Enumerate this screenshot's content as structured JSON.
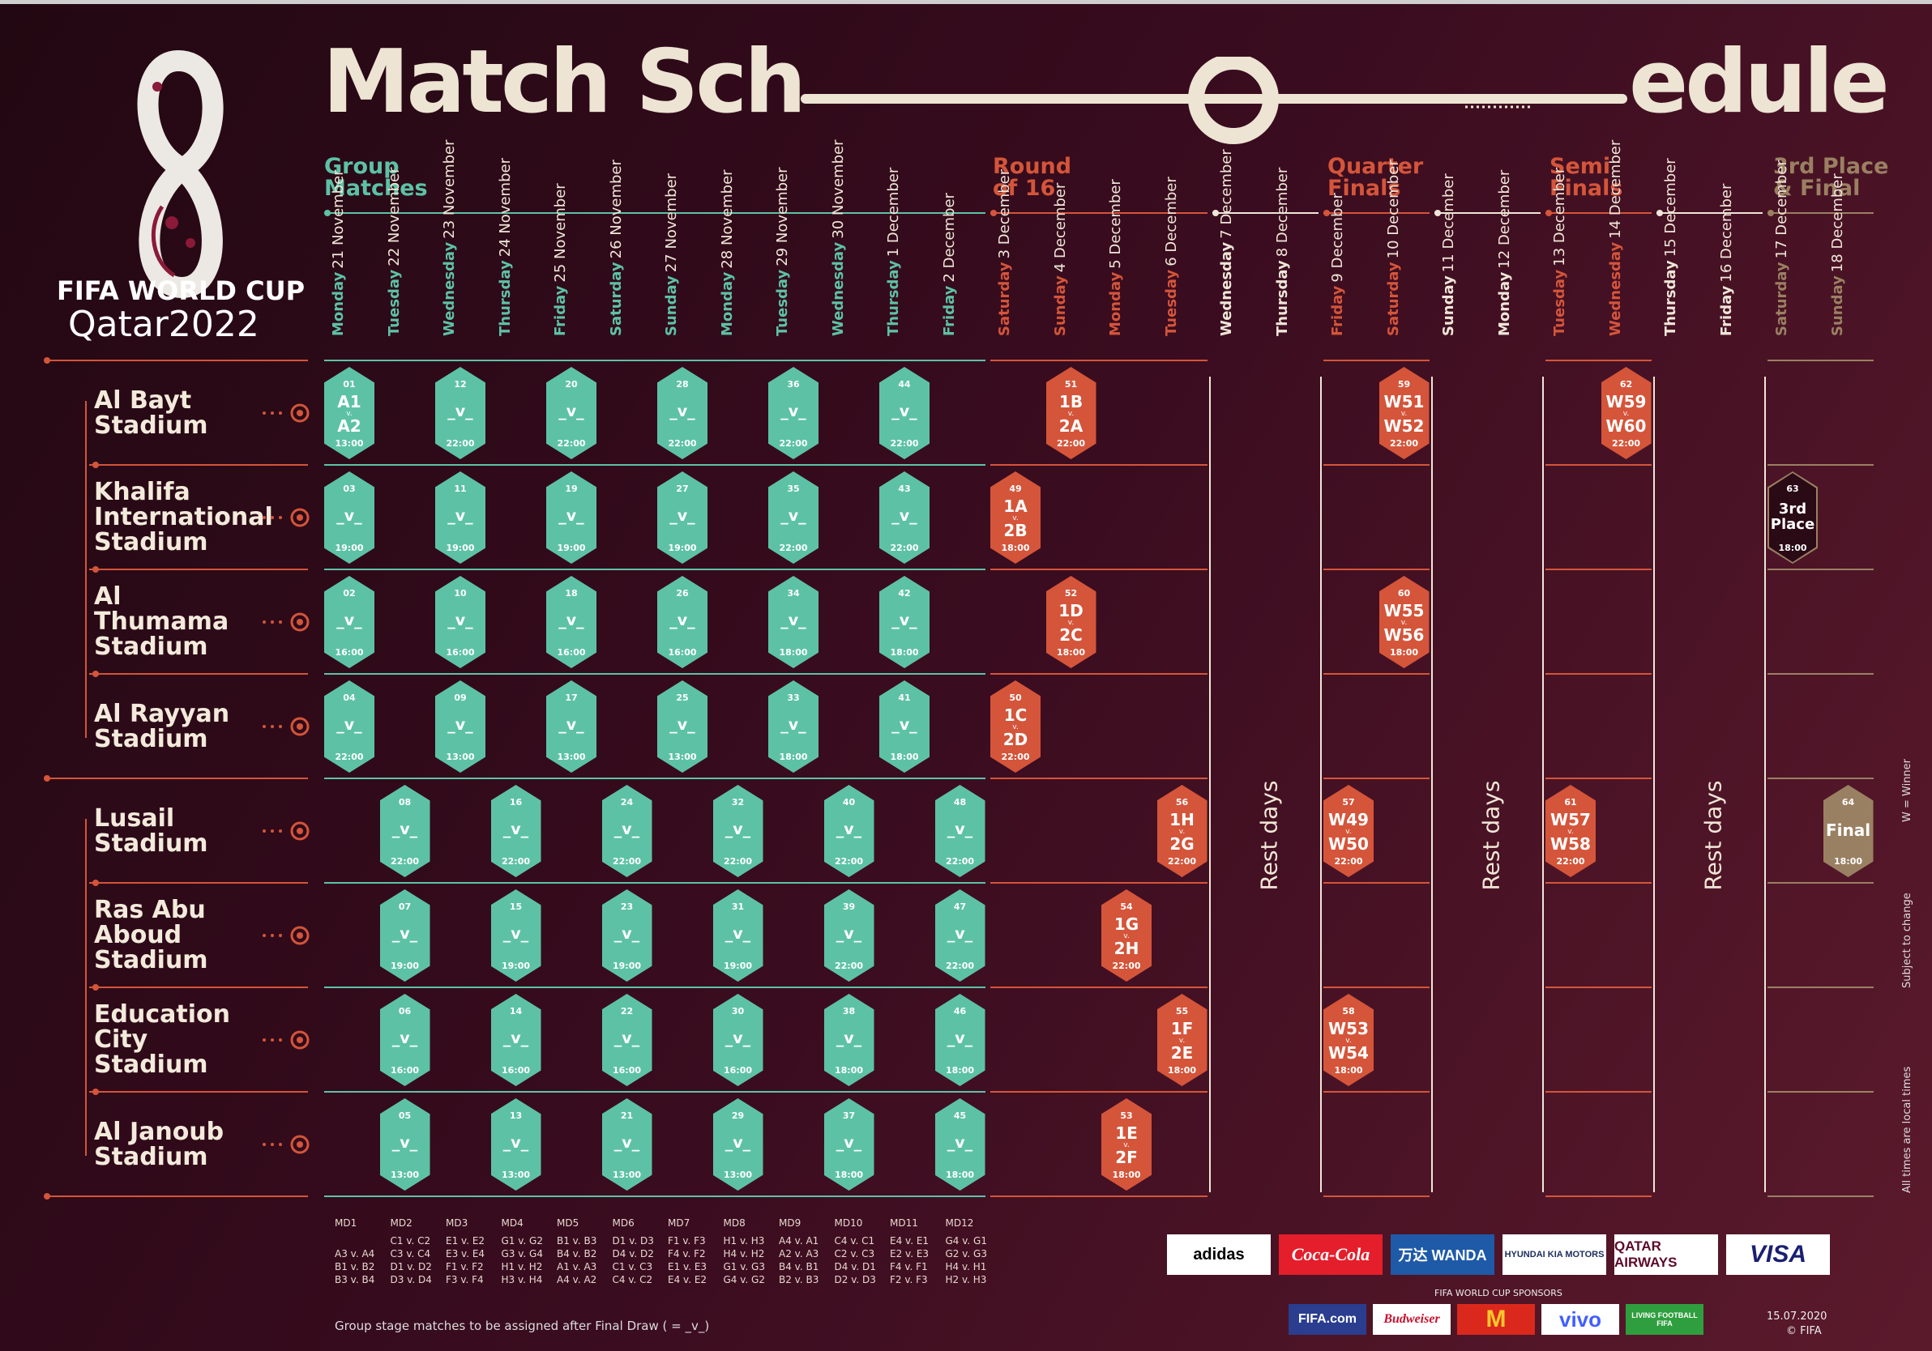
{
  "title": {
    "part1": "Match Sch",
    "part2": "edule"
  },
  "logo": {
    "line1": "FIFA WORLD CUP",
    "line2": "Qatar2022"
  },
  "phases": {
    "group": {
      "l1": "Group",
      "l2": "Matches"
    },
    "r16": {
      "l1": "Round",
      "l2": "of 16"
    },
    "qf": {
      "l1": "Quarter",
      "l2": "Finals"
    },
    "sf": {
      "l1": "Semi",
      "l2": "Finals"
    },
    "final": {
      "l1": "3rd Place",
      "l2": "& Final"
    }
  },
  "dates": [
    {
      "day": "Monday",
      "date": "21 November"
    },
    {
      "day": "Tuesday",
      "date": "22 November"
    },
    {
      "day": "Wednesday",
      "date": "23 November"
    },
    {
      "day": "Thursday",
      "date": "24 November"
    },
    {
      "day": "Friday",
      "date": "25 November"
    },
    {
      "day": "Saturday",
      "date": "26 November"
    },
    {
      "day": "Sunday",
      "date": "27 November"
    },
    {
      "day": "Monday",
      "date": "28 November"
    },
    {
      "day": "Tuesday",
      "date": "29 November"
    },
    {
      "day": "Wednesday",
      "date": "30 November"
    },
    {
      "day": "Thursday",
      "date": "1 December"
    },
    {
      "day": "Friday",
      "date": "2 December"
    },
    {
      "day": "Saturday",
      "date": "3 December"
    },
    {
      "day": "Sunday",
      "date": "4 December"
    },
    {
      "day": "Monday",
      "date": "5 December"
    },
    {
      "day": "Tuesday",
      "date": "6 December"
    },
    {
      "day": "Wednesday",
      "date": "7 December"
    },
    {
      "day": "Thursday",
      "date": "8 December"
    },
    {
      "day": "Friday",
      "date": "9 December"
    },
    {
      "day": "Saturday",
      "date": "10 December"
    },
    {
      "day": "Sunday",
      "date": "11 December"
    },
    {
      "day": "Monday",
      "date": "12 December"
    },
    {
      "day": "Tuesday",
      "date": "13 December"
    },
    {
      "day": "Wednesday",
      "date": "14 December"
    },
    {
      "day": "Thursday",
      "date": "15 December"
    },
    {
      "day": "Friday",
      "date": "16 December"
    },
    {
      "day": "Saturday",
      "date": "17 December"
    },
    {
      "day": "Sunday",
      "date": "18 December"
    }
  ],
  "stadiums": [
    "Al Bayt\nStadium",
    "Khalifa\nInternational\nStadium",
    "Al\nThumama\nStadium",
    "Al Rayyan\nStadium",
    "Lusail\nStadium",
    "Ras Abu\nAboud\nStadium",
    "Education\nCity\nStadium",
    "Al Janoub\nStadium"
  ],
  "rest_label": "Rest days",
  "vs": "_v_",
  "v_small": "v.",
  "matches": [
    {
      "s": 0,
      "c": 0,
      "n": "01",
      "a": "A1",
      "b": "A2",
      "t": "13:00",
      "k": "g"
    },
    {
      "s": 0,
      "c": 2,
      "n": "12",
      "t": "22:00",
      "k": "g"
    },
    {
      "s": 0,
      "c": 4,
      "n": "20",
      "t": "22:00",
      "k": "g"
    },
    {
      "s": 0,
      "c": 6,
      "n": "28",
      "t": "22:00",
      "k": "g"
    },
    {
      "s": 0,
      "c": 8,
      "n": "36",
      "t": "22:00",
      "k": "g"
    },
    {
      "s": 0,
      "c": 10,
      "n": "44",
      "t": "22:00",
      "k": "g"
    },
    {
      "s": 0,
      "c": 13,
      "n": "51",
      "a": "1B",
      "b": "2A",
      "t": "22:00",
      "k": "r"
    },
    {
      "s": 0,
      "c": 19,
      "n": "59",
      "a": "W51",
      "b": "W52",
      "t": "22:00",
      "k": "r"
    },
    {
      "s": 0,
      "c": 23,
      "n": "62",
      "a": "W59",
      "b": "W60",
      "t": "22:00",
      "k": "r"
    },
    {
      "s": 1,
      "c": 0,
      "n": "03",
      "t": "19:00",
      "k": "g"
    },
    {
      "s": 1,
      "c": 2,
      "n": "11",
      "t": "19:00",
      "k": "g"
    },
    {
      "s": 1,
      "c": 4,
      "n": "19",
      "t": "19:00",
      "k": "g"
    },
    {
      "s": 1,
      "c": 6,
      "n": "27",
      "t": "19:00",
      "k": "g"
    },
    {
      "s": 1,
      "c": 8,
      "n": "35",
      "t": "22:00",
      "k": "g"
    },
    {
      "s": 1,
      "c": 10,
      "n": "43",
      "t": "22:00",
      "k": "g"
    },
    {
      "s": 1,
      "c": 12,
      "n": "49",
      "a": "1A",
      "b": "2B",
      "t": "18:00",
      "k": "r"
    },
    {
      "s": 1,
      "c": 26,
      "n": "63",
      "a": "3rd",
      "b": "Place",
      "t": "18:00",
      "k": "o"
    },
    {
      "s": 2,
      "c": 0,
      "n": "02",
      "t": "16:00",
      "k": "g"
    },
    {
      "s": 2,
      "c": 2,
      "n": "10",
      "t": "16:00",
      "k": "g"
    },
    {
      "s": 2,
      "c": 4,
      "n": "18",
      "t": "16:00",
      "k": "g"
    },
    {
      "s": 2,
      "c": 6,
      "n": "26",
      "t": "16:00",
      "k": "g"
    },
    {
      "s": 2,
      "c": 8,
      "n": "34",
      "t": "18:00",
      "k": "g"
    },
    {
      "s": 2,
      "c": 10,
      "n": "42",
      "t": "18:00",
      "k": "g"
    },
    {
      "s": 2,
      "c": 13,
      "n": "52",
      "a": "1D",
      "b": "2C",
      "t": "18:00",
      "k": "r"
    },
    {
      "s": 2,
      "c": 19,
      "n": "60",
      "a": "W55",
      "b": "W56",
      "t": "18:00",
      "k": "r"
    },
    {
      "s": 3,
      "c": 0,
      "n": "04",
      "t": "22:00",
      "k": "g"
    },
    {
      "s": 3,
      "c": 2,
      "n": "09",
      "t": "13:00",
      "k": "g"
    },
    {
      "s": 3,
      "c": 4,
      "n": "17",
      "t": "13:00",
      "k": "g"
    },
    {
      "s": 3,
      "c": 6,
      "n": "25",
      "t": "13:00",
      "k": "g"
    },
    {
      "s": 3,
      "c": 8,
      "n": "33",
      "t": "18:00",
      "k": "g"
    },
    {
      "s": 3,
      "c": 10,
      "n": "41",
      "t": "18:00",
      "k": "g"
    },
    {
      "s": 3,
      "c": 12,
      "n": "50",
      "a": "1C",
      "b": "2D",
      "t": "22:00",
      "k": "r"
    },
    {
      "s": 4,
      "c": 1,
      "n": "08",
      "t": "22:00",
      "k": "g"
    },
    {
      "s": 4,
      "c": 3,
      "n": "16",
      "t": "22:00",
      "k": "g"
    },
    {
      "s": 4,
      "c": 5,
      "n": "24",
      "t": "22:00",
      "k": "g"
    },
    {
      "s": 4,
      "c": 7,
      "n": "32",
      "t": "22:00",
      "k": "g"
    },
    {
      "s": 4,
      "c": 9,
      "n": "40",
      "t": "22:00",
      "k": "g"
    },
    {
      "s": 4,
      "c": 11,
      "n": "48",
      "t": "22:00",
      "k": "g"
    },
    {
      "s": 4,
      "c": 15,
      "n": "56",
      "a": "1H",
      "b": "2G",
      "t": "22:00",
      "k": "r"
    },
    {
      "s": 4,
      "c": 18,
      "n": "57",
      "a": "W49",
      "b": "W50",
      "t": "22:00",
      "k": "r"
    },
    {
      "s": 4,
      "c": 22,
      "n": "61",
      "a": "W57",
      "b": "W58",
      "t": "22:00",
      "k": "r"
    },
    {
      "s": 4,
      "c": 27,
      "n": "64",
      "f": "Final",
      "t": "18:00",
      "k": "tan"
    },
    {
      "s": 5,
      "c": 1,
      "n": "07",
      "t": "19:00",
      "k": "g"
    },
    {
      "s": 5,
      "c": 3,
      "n": "15",
      "t": "19:00",
      "k": "g"
    },
    {
      "s": 5,
      "c": 5,
      "n": "23",
      "t": "19:00",
      "k": "g"
    },
    {
      "s": 5,
      "c": 7,
      "n": "31",
      "t": "19:00",
      "k": "g"
    },
    {
      "s": 5,
      "c": 9,
      "n": "39",
      "t": "22:00",
      "k": "g"
    },
    {
      "s": 5,
      "c": 11,
      "n": "47",
      "t": "22:00",
      "k": "g"
    },
    {
      "s": 5,
      "c": 14,
      "n": "54",
      "a": "1G",
      "b": "2H",
      "t": "22:00",
      "k": "r"
    },
    {
      "s": 6,
      "c": 1,
      "n": "06",
      "t": "16:00",
      "k": "g"
    },
    {
      "s": 6,
      "c": 3,
      "n": "14",
      "t": "16:00",
      "k": "g"
    },
    {
      "s": 6,
      "c": 5,
      "n": "22",
      "t": "16:00",
      "k": "g"
    },
    {
      "s": 6,
      "c": 7,
      "n": "30",
      "t": "16:00",
      "k": "g"
    },
    {
      "s": 6,
      "c": 9,
      "n": "38",
      "t": "18:00",
      "k": "g"
    },
    {
      "s": 6,
      "c": 11,
      "n": "46",
      "t": "18:00",
      "k": "g"
    },
    {
      "s": 6,
      "c": 15,
      "n": "55",
      "a": "1F",
      "b": "2E",
      "t": "18:00",
      "k": "r"
    },
    {
      "s": 6,
      "c": 18,
      "n": "58",
      "a": "W53",
      "b": "W54",
      "t": "18:00",
      "k": "r"
    },
    {
      "s": 7,
      "c": 1,
      "n": "05",
      "t": "13:00",
      "k": "g"
    },
    {
      "s": 7,
      "c": 3,
      "n": "13",
      "t": "13:00",
      "k": "g"
    },
    {
      "s": 7,
      "c": 5,
      "n": "21",
      "t": "13:00",
      "k": "g"
    },
    {
      "s": 7,
      "c": 7,
      "n": "29",
      "t": "13:00",
      "k": "g"
    },
    {
      "s": 7,
      "c": 9,
      "n": "37",
      "t": "18:00",
      "k": "g"
    },
    {
      "s": 7,
      "c": 11,
      "n": "45",
      "t": "18:00",
      "k": "g"
    },
    {
      "s": 7,
      "c": 14,
      "n": "53",
      "a": "1E",
      "b": "2F",
      "t": "18:00",
      "k": "r"
    }
  ],
  "matchdays": [
    {
      "md": "MD1",
      "l": [
        "",
        "A3 v. A4",
        "B1 v. B2",
        "B3 v. B4"
      ]
    },
    {
      "md": "MD2",
      "l": [
        "C1 v. C2",
        "C3 v. C4",
        "D1 v. D2",
        "D3 v. D4"
      ]
    },
    {
      "md": "MD3",
      "l": [
        "E1 v. E2",
        "E3 v. E4",
        "F1 v. F2",
        "F3 v. F4"
      ]
    },
    {
      "md": "MD4",
      "l": [
        "G1 v. G2",
        "G3 v. G4",
        "H1 v. H2",
        "H3 v. H4"
      ]
    },
    {
      "md": "MD5",
      "l": [
        "B1 v. B3",
        "B4 v. B2",
        "A1 v. A3",
        "A4 v. A2"
      ]
    },
    {
      "md": "MD6",
      "l": [
        "D1 v. D3",
        "D4 v. D2",
        "C1 v. C3",
        "C4 v. C2"
      ]
    },
    {
      "md": "MD7",
      "l": [
        "F1 v. F3",
        "F4 v. F2",
        "E1 v. E3",
        "E4 v. E2"
      ]
    },
    {
      "md": "MD8",
      "l": [
        "H1 v. H3",
        "H4 v. H2",
        "G1 v. G3",
        "G4 v. G2"
      ]
    },
    {
      "md": "MD9",
      "l": [
        "A4 v. A1",
        "A2 v. A3",
        "B4 v. B1",
        "B2 v. B3"
      ]
    },
    {
      "md": "MD10",
      "l": [
        "C4 v. C1",
        "C2 v. C3",
        "D4 v. D1",
        "D2 v. D3"
      ]
    },
    {
      "md": "MD11",
      "l": [
        "E4 v. E1",
        "E2 v. E3",
        "F4 v. F1",
        "F2 v. F3"
      ]
    },
    {
      "md": "MD12",
      "l": [
        "G4 v. G1",
        "G2 v. G3",
        "H4 v. H1",
        "H2 v. H3"
      ]
    }
  ],
  "footnote": "Group stage matches to be assigned after Final Draw ( = _v_)",
  "side_notes": [
    "W = Winner",
    "Subject to change",
    "All times are local times"
  ],
  "sponsors_label": "FIFA WORLD CUP SPONSORS",
  "sponsors_top": [
    "adidas",
    "Coca-Cola",
    "万达 WANDA",
    "HYUNDAI  KIA MOTORS",
    "QATAR AIRWAYS",
    "VISA"
  ],
  "sponsors_bottom": [
    "FIFA.com",
    "Budweiser",
    "M",
    "vivo",
    "LIVING FOOTBALL FIFA"
  ],
  "date_stamp": "15.07.2020",
  "copyright": "© FIFA",
  "colors": {
    "green": "#5dc2a5",
    "red": "#d4553a",
    "tan": "#9a8062",
    "cream": "#efe6d8",
    "bg": "#3a0c1f"
  }
}
